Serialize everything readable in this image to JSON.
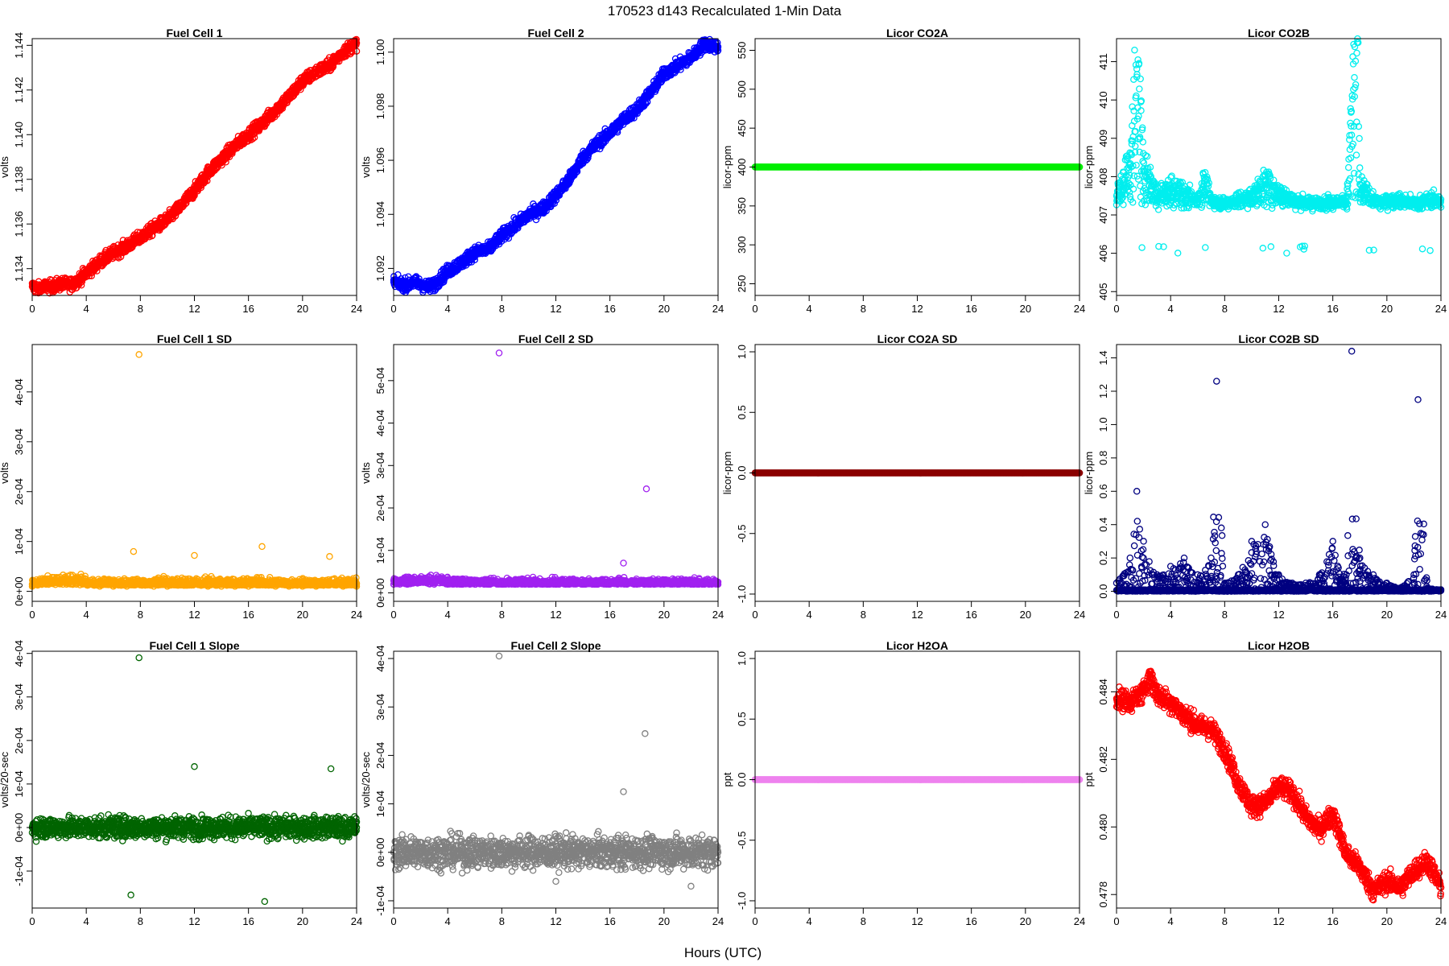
{
  "figure": {
    "title": "170523   d143   Recalculated 1-Min Data",
    "xlabel": "Hours (UTC)"
  },
  "chart_data": [
    {
      "type": "scatter",
      "title": "Fuel Cell 1",
      "xlabel": "",
      "ylabel": "volts",
      "color": "#ff0000",
      "xlim": [
        0,
        24
      ],
      "xticks": [
        0,
        4,
        8,
        12,
        16,
        20,
        24
      ],
      "ylim": [
        1.1328,
        1.1443
      ],
      "yticks": [
        1.134,
        1.136,
        1.138,
        1.14,
        1.142,
        1.144
      ],
      "ytick_labels": [
        "1.134",
        "1.136",
        "1.138",
        "1.140",
        "1.142",
        "1.144"
      ],
      "series": [
        {
          "x": [
            0,
            0.5,
            1,
            1.5,
            2,
            2.5,
            3,
            4,
            5,
            6,
            7,
            8,
            9,
            10,
            11,
            12,
            13,
            14,
            15,
            16,
            17,
            18,
            19,
            20,
            21,
            22,
            23,
            24
          ],
          "y": [
            1.1332,
            1.1331,
            1.1332,
            1.1332,
            1.1333,
            1.1333,
            1.1333,
            1.1338,
            1.1343,
            1.1347,
            1.135,
            1.1354,
            1.1358,
            1.1362,
            1.1368,
            1.1375,
            1.1383,
            1.1389,
            1.1395,
            1.14,
            1.1405,
            1.1411,
            1.1417,
            1.1424,
            1.1428,
            1.1431,
            1.1437,
            1.1441
          ]
        }
      ]
    },
    {
      "type": "scatter",
      "title": "Fuel Cell 2",
      "xlabel": "",
      "ylabel": "volts",
      "color": "#0000ff",
      "xlim": [
        0,
        24
      ],
      "xticks": [
        0,
        4,
        8,
        12,
        16,
        20,
        24
      ],
      "ylim": [
        1.091,
        1.1005
      ],
      "yticks": [
        1.092,
        1.094,
        1.096,
        1.098,
        1.1
      ],
      "ytick_labels": [
        "1.092",
        "1.094",
        "1.096",
        "1.098",
        "1.100"
      ],
      "series": [
        {
          "x": [
            0,
            0.5,
            1,
            1.5,
            2,
            2.5,
            3,
            4,
            5,
            6,
            7,
            8,
            9,
            10,
            11,
            12,
            13,
            14,
            15,
            16,
            17,
            18,
            19,
            20,
            21,
            22,
            23,
            24
          ],
          "y": [
            1.0915,
            1.0914,
            1.0914,
            1.0915,
            1.0914,
            1.0913,
            1.0914,
            1.0919,
            1.0922,
            1.0926,
            1.0927,
            1.0932,
            1.0936,
            1.094,
            1.0942,
            1.0947,
            1.0953,
            1.0961,
            1.0966,
            1.097,
            1.0975,
            1.0979,
            1.0985,
            1.0992,
            1.0995,
            1.0998,
            1.1003,
            1.1002
          ]
        }
      ]
    },
    {
      "type": "scatter",
      "title": "Licor CO2A",
      "xlabel": "",
      "ylabel": "licor-ppm",
      "color": "#00ee00",
      "xlim": [
        0,
        24
      ],
      "xticks": [
        0,
        4,
        8,
        12,
        16,
        20,
        24
      ],
      "ylim": [
        235,
        565
      ],
      "yticks": [
        250,
        300,
        350,
        400,
        450,
        500,
        550
      ],
      "ytick_labels": [
        "250",
        "300",
        "350",
        "400",
        "450",
        "500",
        "550"
      ],
      "series": [
        {
          "x": [
            0,
            24
          ],
          "y": [
            400,
            400
          ]
        }
      ]
    },
    {
      "type": "scatter",
      "title": "Licor CO2B",
      "xlabel": "",
      "ylabel": "licor-ppm",
      "color": "#00eeee",
      "xlim": [
        0,
        24
      ],
      "xticks": [
        0,
        4,
        8,
        12,
        16,
        20,
        24
      ],
      "ylim": [
        404.9,
        411.6
      ],
      "yticks": [
        405,
        406,
        407,
        408,
        409,
        410,
        411
      ],
      "ytick_labels": [
        "405",
        "406",
        "407",
        "408",
        "409",
        "410",
        "411"
      ],
      "series": [
        {
          "x": [
            0,
            1,
            1.5,
            2,
            3,
            4,
            5,
            6,
            6.5,
            7,
            8,
            9,
            10,
            11,
            12,
            13,
            14,
            15,
            16,
            17,
            17.8,
            18,
            19,
            20,
            21,
            22,
            23,
            24
          ],
          "y": [
            407.5,
            408.3,
            410.6,
            408.2,
            407.5,
            407.7,
            407.6,
            407.4,
            407.9,
            407.4,
            407.3,
            407.4,
            407.5,
            407.9,
            407.6,
            407.4,
            407.3,
            407.3,
            407.3,
            407.2,
            411.5,
            407.8,
            407.4,
            407.2,
            407.2,
            407.3,
            407.2,
            407.2
          ]
        }
      ]
    },
    {
      "type": "scatter",
      "title": "Fuel Cell 1 SD",
      "xlabel": "",
      "ylabel": "volts",
      "color": "#ffa500",
      "xlim": [
        0,
        24
      ],
      "xticks": [
        0,
        4,
        8,
        12,
        16,
        20,
        24
      ],
      "ylim": [
        -2e-05,
        0.000495
      ],
      "yticks": [
        0,
        0.0001,
        0.0002,
        0.0003,
        0.0004
      ],
      "ytick_labels": [
        "0e+00",
        "1e-04",
        "2e-04",
        "3e-04",
        "4e-04"
      ],
      "series": [
        {
          "x": [
            0,
            1,
            2,
            3,
            4,
            5,
            6,
            7,
            7.5,
            7.9,
            9,
            10,
            11,
            12,
            13,
            14,
            15,
            16,
            17,
            18,
            19,
            20,
            21,
            22,
            23,
            24
          ],
          "y": [
            1e-05,
            1.5e-05,
            2e-05,
            2.2e-05,
            1.8e-05,
            1e-05,
            1e-05,
            1e-05,
            8e-05,
            0.000475,
            1e-05,
            1e-05,
            2e-05,
            7.2e-05,
            1e-05,
            1e-05,
            1e-05,
            1e-05,
            9e-05,
            1e-05,
            1e-05,
            1e-05,
            1e-05,
            7e-05,
            1e-05,
            1e-05
          ]
        }
      ]
    },
    {
      "type": "scatter",
      "title": "Fuel Cell 2 SD",
      "xlabel": "",
      "ylabel": "volts",
      "color": "#a020f0",
      "xlim": [
        0,
        24
      ],
      "xticks": [
        0,
        4,
        8,
        12,
        16,
        20,
        24
      ],
      "ylim": [
        -2e-05,
        0.000585
      ],
      "yticks": [
        0,
        0.0001,
        0.0002,
        0.0003,
        0.0004,
        0.0005
      ],
      "ytick_labels": [
        "0e+00",
        "1e-04",
        "2e-04",
        "3e-04",
        "4e-04",
        "5e-04"
      ],
      "series": [
        {
          "x": [
            0,
            1,
            2,
            3,
            4,
            5,
            6,
            7,
            7.8,
            9,
            10,
            11,
            12,
            13,
            14,
            15,
            16,
            17,
            18,
            18.7,
            19,
            20,
            21,
            22,
            23,
            24
          ],
          "y": [
            2e-05,
            2e-05,
            2.5e-05,
            2e-05,
            2e-05,
            2e-05,
            2e-05,
            2e-05,
            0.000565,
            2e-05,
            2e-05,
            2e-05,
            2e-05,
            2e-05,
            2e-05,
            2e-05,
            2e-05,
            7e-05,
            2e-05,
            0.000245,
            2e-05,
            2e-05,
            2e-05,
            2e-05,
            2e-05,
            2e-05
          ]
        }
      ]
    },
    {
      "type": "scatter",
      "title": "Licor CO2A SD",
      "xlabel": "",
      "ylabel": "licor-ppm",
      "color": "#8b0000",
      "xlim": [
        0,
        24
      ],
      "xticks": [
        0,
        4,
        8,
        12,
        16,
        20,
        24
      ],
      "ylim": [
        -1.06,
        1.06
      ],
      "yticks": [
        -1,
        -0.5,
        0,
        0.5,
        1
      ],
      "ytick_labels": [
        "-1.0",
        "-0.5",
        "0.0",
        "0.5",
        "1.0"
      ],
      "series": [
        {
          "x": [
            0,
            24
          ],
          "y": [
            0,
            0
          ]
        }
      ]
    },
    {
      "type": "scatter",
      "title": "Licor CO2B SD",
      "xlabel": "",
      "ylabel": "licor-ppm",
      "color": "#000080",
      "xlim": [
        0,
        24
      ],
      "xticks": [
        0,
        4,
        8,
        12,
        16,
        20,
        24
      ],
      "ylim": [
        -0.06,
        1.48
      ],
      "yticks": [
        0,
        0.2,
        0.4,
        0.6,
        0.8,
        1,
        1.2,
        1.4
      ],
      "ytick_labels": [
        "0.0",
        "0.2",
        "0.4",
        "0.6",
        "0.8",
        "1.0",
        "1.2",
        "1.4"
      ],
      "series": [
        {
          "x": [
            0,
            1,
            1.5,
            2,
            3,
            4,
            5,
            6,
            7,
            7.4,
            8,
            9,
            10,
            11,
            12,
            13,
            14,
            15,
            16,
            17,
            17.4,
            18,
            19,
            20,
            21,
            22,
            22.3,
            23,
            24
          ],
          "y": [
            0.05,
            0.2,
            0.6,
            0.3,
            0.1,
            0.15,
            0.2,
            0.1,
            0.2,
            1.26,
            0.05,
            0.1,
            0.3,
            0.4,
            0.1,
            0.05,
            0.05,
            0.1,
            0.3,
            0.1,
            1.44,
            0.2,
            0.1,
            0.05,
            0.02,
            0.1,
            1.15,
            0.02,
            0.01
          ]
        }
      ]
    },
    {
      "type": "scatter",
      "title": "Fuel Cell 1 Slope",
      "xlabel": "",
      "ylabel": "volts/20-sec",
      "color": "#006400",
      "xlim": [
        0,
        24
      ],
      "xticks": [
        0,
        4,
        8,
        12,
        16,
        20,
        24
      ],
      "ylim": [
        -0.000185,
        0.000405
      ],
      "yticks": [
        -0.0001,
        0,
        0.0001,
        0.0002,
        0.0003,
        0.0004
      ],
      "ytick_labels": [
        "-1e-04",
        "0e+00",
        "1e-04",
        "2e-04",
        "3e-04",
        "4e-04"
      ],
      "series": [
        {
          "x": [
            0,
            1,
            2,
            3,
            4,
            5,
            6,
            7,
            7.3,
            7.9,
            9,
            10,
            11,
            12,
            13,
            14,
            15,
            16,
            17,
            17.2,
            18,
            19,
            20,
            22.1,
            23,
            24
          ],
          "y": [
            0,
            1e-05,
            5e-06,
            0,
            0,
            1e-05,
            0,
            0,
            -0.000155,
            0.00039,
            0,
            0,
            2e-05,
            0.00014,
            0,
            0,
            0,
            0,
            0,
            -0.00017,
            0,
            0,
            1e-05,
            0.000135,
            0,
            0
          ]
        }
      ]
    },
    {
      "type": "scatter",
      "title": "Fuel Cell 2 Slope",
      "xlabel": "",
      "ylabel": "volts/20-sec",
      "color": "#808080",
      "xlim": [
        0,
        24
      ],
      "xticks": [
        0,
        4,
        8,
        12,
        16,
        20,
        24
      ],
      "ylim": [
        -0.000115,
        0.000415
      ],
      "yticks": [
        -0.0001,
        0,
        0.0001,
        0.0002,
        0.0003,
        0.0004
      ],
      "ytick_labels": [
        "-1e-04",
        "0e+00",
        "1e-04",
        "2e-04",
        "3e-04",
        "4e-04"
      ],
      "series": [
        {
          "x": [
            0,
            1,
            2,
            3,
            4,
            5,
            6,
            7,
            7.8,
            9,
            10,
            11,
            12,
            13,
            14,
            15,
            16,
            17,
            18,
            18.6,
            19,
            20,
            21,
            22,
            23,
            24
          ],
          "y": [
            0,
            1e-05,
            0,
            0,
            0,
            1e-05,
            0,
            0,
            0.000405,
            0,
            0,
            0,
            -6e-05,
            0,
            0,
            0,
            0,
            0.000125,
            0,
            0.000245,
            0,
            0,
            0,
            -7e-05,
            0,
            0
          ]
        }
      ]
    },
    {
      "type": "scatter",
      "title": "Licor H2OA",
      "xlabel": "",
      "ylabel": "ppt",
      "color": "#ee82ee",
      "xlim": [
        0,
        24
      ],
      "xticks": [
        0,
        4,
        8,
        12,
        16,
        20,
        24
      ],
      "ylim": [
        -1.06,
        1.06
      ],
      "yticks": [
        -1,
        -0.5,
        0,
        0.5,
        1
      ],
      "ytick_labels": [
        "-1.0",
        "-0.5",
        "0.0",
        "0.5",
        "1.0"
      ],
      "series": [
        {
          "x": [
            0,
            24
          ],
          "y": [
            0,
            0
          ]
        }
      ]
    },
    {
      "type": "scatter",
      "title": "Licor H2OB",
      "xlabel": "",
      "ylabel": "ppt",
      "color": "#ff0000",
      "xlim": [
        0,
        24
      ],
      "xticks": [
        0,
        4,
        8,
        12,
        16,
        20,
        24
      ],
      "ylim": [
        0.4776,
        0.4852
      ],
      "yticks": [
        0.478,
        0.48,
        0.482,
        0.484
      ],
      "ytick_labels": [
        "0.478",
        "0.480",
        "0.482",
        "0.484"
      ],
      "series": [
        {
          "x": [
            0,
            1,
            2,
            2.5,
            3,
            4,
            5,
            6,
            7,
            8,
            9,
            10,
            11,
            12,
            13,
            14,
            15,
            16,
            17,
            18,
            19,
            20,
            21,
            22,
            23,
            24
          ],
          "y": [
            0.4838,
            0.4837,
            0.484,
            0.4845,
            0.4839,
            0.4837,
            0.4833,
            0.483,
            0.4829,
            0.4823,
            0.4813,
            0.4806,
            0.4807,
            0.4812,
            0.481,
            0.4803,
            0.4799,
            0.4804,
            0.4792,
            0.4788,
            0.4781,
            0.4784,
            0.4782,
            0.4787,
            0.479,
            0.4782
          ]
        }
      ]
    }
  ]
}
